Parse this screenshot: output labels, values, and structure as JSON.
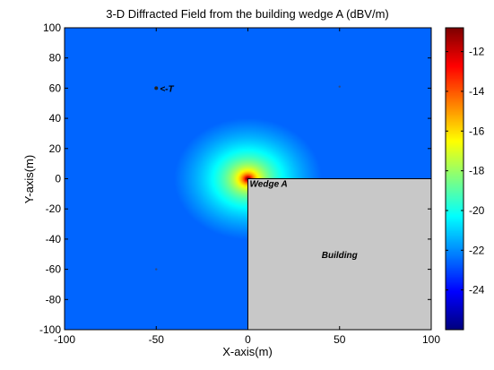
{
  "chart_data": {
    "type": "heatmap",
    "title": "3-D Diffracted Field from the building wedge A (dBV/m)",
    "xlabel": "X-axis(m)",
    "ylabel": "Y-axis(m)",
    "xlim": [
      -100,
      100
    ],
    "ylim": [
      -100,
      100
    ],
    "xticks": [
      -100,
      -50,
      0,
      50,
      100
    ],
    "yticks": [
      -100,
      -80,
      -60,
      -40,
      -20,
      0,
      20,
      40,
      60,
      80,
      100
    ],
    "colorbar": {
      "label": "",
      "range": [
        -26,
        -10.8
      ],
      "ticks": [
        -24,
        -22,
        -20,
        -18,
        -16,
        -14,
        -12
      ],
      "colormap": "jet"
    },
    "source": {
      "x": 0,
      "y": 0,
      "peak_db": -10.8
    },
    "field_model": {
      "base_db": -11.2,
      "slope_db_per_log10_m": -7.1,
      "min_db": -22.6
    },
    "building": {
      "x_range": [
        0,
        100
      ],
      "y_range": [
        -100,
        0
      ],
      "fill": "#c8c8c8",
      "label": "Building"
    },
    "annotations": [
      {
        "text": "Wedge A",
        "x": 1,
        "y": -3
      },
      {
        "text": "<-T",
        "x": -48,
        "y": 60
      }
    ],
    "markers": [
      {
        "name": "T",
        "x": -50,
        "y": 60
      },
      {
        "name": "small-mark",
        "x": 50,
        "y": 61
      },
      {
        "name": "small-mark",
        "x": -50,
        "y": -60
      }
    ],
    "grid": false
  }
}
